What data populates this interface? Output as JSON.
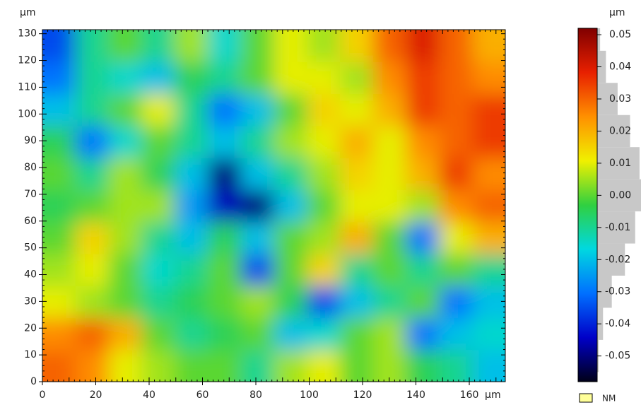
{
  "chart_data": {
    "type": "heatmap",
    "x_unit": "µm",
    "y_unit": "µm",
    "colorbar_unit": "µm",
    "legend_label": "NM",
    "legend_color": "#ffff99",
    "xlim": [
      0,
      173.5
    ],
    "ylim": [
      0,
      131.5
    ],
    "xticks": [
      0,
      20,
      40,
      60,
      80,
      100,
      120,
      140,
      160
    ],
    "yticks": [
      0,
      10,
      20,
      30,
      40,
      50,
      60,
      70,
      80,
      90,
      100,
      110,
      120,
      130
    ],
    "zlim": [
      -0.058,
      0.052
    ],
    "zticks": [
      0.05,
      0.04,
      0.03,
      0.02,
      0.01,
      {
        "value": 0,
        "label": "0.00"
      },
      -0.01,
      -0.02,
      -0.03,
      -0.04,
      -0.05
    ],
    "colormap": [
      "#000018",
      "#0000c8",
      "#0070ff",
      "#00d8e0",
      "#30d040",
      "#f0f000",
      "#ff9000",
      "#e82000",
      "#800000"
    ],
    "values": [
      [
        0.03,
        0.025,
        0.01,
        0.005,
        0.0,
        0.0,
        -0.01,
        0.005,
        0.01,
        0.0,
        0.005,
        -0.005,
        -0.01,
        -0.02
      ],
      [
        0.025,
        0.03,
        0.02,
        0.0,
        -0.01,
        -0.005,
        0.0,
        -0.02,
        -0.015,
        0.0,
        0.005,
        -0.03,
        -0.02,
        -0.015
      ],
      [
        0.01,
        0.005,
        0.0,
        -0.01,
        -0.005,
        0.0,
        0.005,
        -0.005,
        -0.035,
        -0.02,
        -0.01,
        0.0,
        -0.03,
        -0.02
      ],
      [
        0.005,
        0.01,
        0.0,
        -0.015,
        -0.01,
        0.0,
        -0.035,
        0.0,
        0.015,
        -0.01,
        0.0,
        -0.01,
        0.0,
        -0.01
      ],
      [
        0.0,
        0.015,
        0.005,
        -0.01,
        -0.02,
        -0.005,
        -0.02,
        0.0,
        0.005,
        0.02,
        0.0,
        -0.03,
        0.01,
        0.02
      ],
      [
        -0.005,
        0.0,
        0.005,
        0.005,
        -0.025,
        -0.045,
        -0.05,
        -0.02,
        0.0,
        0.01,
        0.01,
        0.005,
        0.025,
        0.03
      ],
      [
        0.0,
        -0.01,
        0.005,
        -0.005,
        -0.02,
        -0.05,
        -0.02,
        -0.01,
        0.005,
        0.015,
        0.01,
        0.02,
        0.035,
        0.025
      ],
      [
        -0.005,
        -0.03,
        -0.015,
        0.0,
        -0.01,
        -0.02,
        -0.01,
        0.005,
        0.01,
        0.02,
        0.01,
        0.025,
        0.03,
        0.035
      ],
      [
        -0.02,
        -0.01,
        0.0,
        0.01,
        -0.01,
        -0.03,
        -0.02,
        0.0,
        0.015,
        0.01,
        0.02,
        0.035,
        0.03,
        0.035
      ],
      [
        -0.03,
        -0.01,
        -0.015,
        -0.02,
        -0.005,
        -0.01,
        0.0,
        0.01,
        0.01,
        0.005,
        0.025,
        0.035,
        0.03,
        0.025
      ],
      [
        -0.035,
        -0.01,
        0.0,
        -0.01,
        0.005,
        -0.015,
        0.0,
        0.01,
        0.005,
        0.015,
        0.03,
        0.04,
        0.03,
        0.02
      ]
    ],
    "histogram": {
      "bins": [
        -0.055,
        -0.045,
        -0.035,
        -0.025,
        -0.015,
        -0.005,
        0.005,
        0.015,
        0.025,
        0.035,
        0.045,
        0.055
      ],
      "counts": [
        2,
        8,
        20,
        38,
        52,
        60,
        58,
        45,
        28,
        12,
        4
      ],
      "color": "#c8c8c8"
    }
  }
}
